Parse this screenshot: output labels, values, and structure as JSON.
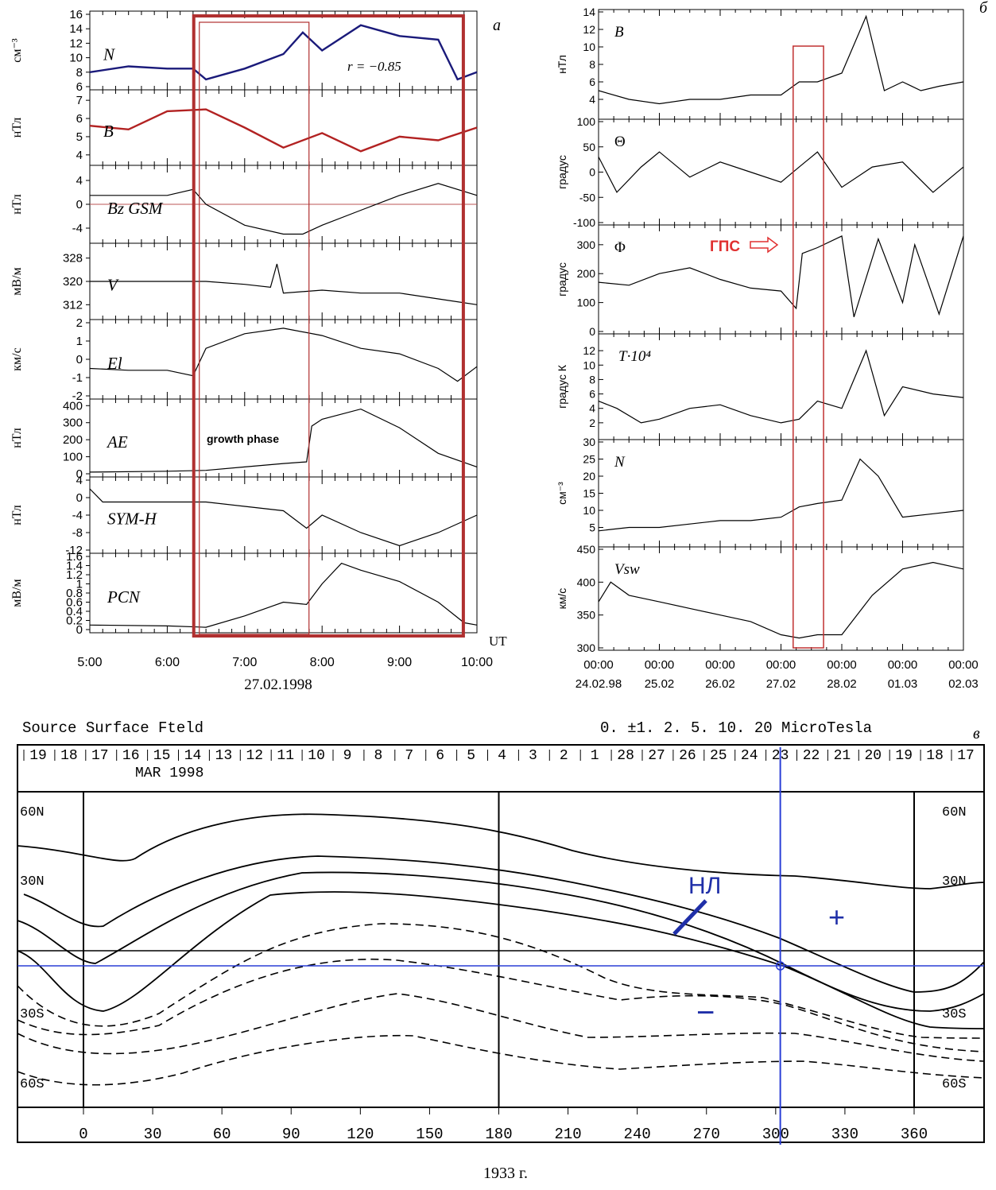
{
  "panels": {
    "a": {
      "letter": "а",
      "annotation_r": "r = −0.85",
      "growth_label": "growth phase",
      "x_unit": "UT",
      "date_label": "27.02.1998",
      "x_ticks": [
        "5:00",
        "6:00",
        "7:00",
        "8:00",
        "9:00",
        "10:00"
      ]
    },
    "b": {
      "letter": "б",
      "gps_label": "ГПС",
      "x_ticks": [
        [
          "00:00",
          "24.02.98"
        ],
        [
          "00:00",
          "25.02"
        ],
        [
          "00:00",
          "26.02"
        ],
        [
          "00:00",
          "27.02"
        ],
        [
          "00:00",
          "28.02"
        ],
        [
          "00:00",
          "01.03"
        ],
        [
          "00:00",
          "02.03"
        ]
      ]
    },
    "c": {
      "letter": "в",
      "title": "Source Surface Fteld",
      "contours": "0. ±1. 2. 5. 10. 20 MicroTesla",
      "month": "MAR 1998",
      "neutral_line": "НЛ",
      "plus": "+",
      "minus": "−",
      "caption": "1933 г.",
      "day_ticks": [
        "19",
        "18",
        "17",
        "16",
        "15",
        "14",
        "13",
        "12",
        "11",
        "10",
        "9",
        "8",
        "7",
        "6",
        "5",
        "4",
        "3",
        "2",
        "1",
        "28",
        "27",
        "26",
        "25",
        "24",
        "23",
        "22",
        "21",
        "20",
        "19",
        "18",
        "17"
      ],
      "lat_labels_left": [
        "60N",
        "30N",
        "30S",
        "60S"
      ],
      "lat_labels_right": [
        "60N",
        "30N",
        "30S",
        "60S"
      ],
      "lon_ticks": [
        "0",
        "30",
        "60",
        "90",
        "120",
        "150",
        "180",
        "210",
        "240",
        "270",
        "300",
        "330",
        "360"
      ]
    }
  },
  "chart_data": [
    {
      "type": "line",
      "title": "",
      "xlabel": "UT",
      "x_range": [
        "5:00",
        "10:00"
      ],
      "x_ticks": [
        "5:00",
        "6:00",
        "7:00",
        "8:00",
        "9:00",
        "10:00"
      ],
      "highlight": {
        "label": "growth phase",
        "start": "6:23",
        "end": "7:48",
        "outer_end": "9:47"
      },
      "panels": [
        {
          "label": "N",
          "unit": "см⁻³",
          "ylim": [
            6,
            16
          ],
          "ticks": [
            6,
            8,
            10,
            12,
            14,
            16
          ],
          "color": "#1a1a7a",
          "x": [
            "5:00",
            "5:30",
            "6:00",
            "6:20",
            "6:30",
            "7:00",
            "7:30",
            "7:45",
            "8:00",
            "8:30",
            "9:00",
            "9:30",
            "9:45",
            "10:00"
          ],
          "y": [
            8,
            8.8,
            8.5,
            8.5,
            7,
            8.5,
            10.5,
            13.5,
            11,
            14.5,
            13,
            12.5,
            7,
            8
          ]
        },
        {
          "label": "B",
          "unit": "нТл",
          "ylim": [
            3.6,
            7.4
          ],
          "ticks": [
            4,
            5,
            6,
            7
          ],
          "color": "#b22222",
          "x": [
            "5:00",
            "5:30",
            "6:00",
            "6:30",
            "7:00",
            "7:30",
            "8:00",
            "8:30",
            "9:00",
            "9:30",
            "10:00"
          ],
          "y": [
            5.6,
            5.4,
            6.4,
            6.5,
            5.5,
            4.4,
            5.2,
            4.2,
            5,
            4.8,
            5.5
          ]
        },
        {
          "label": "Bz GSM",
          "unit": "нТл",
          "ylim": [
            -6,
            6
          ],
          "ticks": [
            -4,
            0,
            4
          ],
          "color": "#000000",
          "x": [
            "5:00",
            "5:30",
            "6:00",
            "6:20",
            "6:30",
            "7:00",
            "7:30",
            "7:45",
            "8:00",
            "8:30",
            "9:00",
            "9:30",
            "10:00"
          ],
          "y": [
            1.5,
            1.5,
            1.5,
            2.5,
            0,
            -3.5,
            -5,
            -5,
            -3.5,
            -1,
            1.5,
            3.5,
            1.5
          ]
        },
        {
          "label": "V",
          "unit": "мВ/м",
          "ylim": [
            308,
            332
          ],
          "ticks": [
            312,
            320,
            328
          ],
          "color": "#000000",
          "x": [
            "5:00",
            "5:30",
            "6:00",
            "6:30",
            "7:00",
            "7:20",
            "7:25",
            "7:30",
            "8:00",
            "8:30",
            "9:00",
            "9:30",
            "10:00"
          ],
          "y": [
            320,
            320,
            320,
            320,
            319,
            318,
            326,
            316,
            317,
            316,
            316,
            314,
            312
          ]
        },
        {
          "label": "El",
          "unit": "км/с",
          "ylim": [
            -2,
            2
          ],
          "ticks": [
            -2,
            -1,
            0,
            1,
            2
          ],
          "color": "#000000",
          "x": [
            "5:00",
            "5:30",
            "6:00",
            "6:20",
            "6:30",
            "7:00",
            "7:30",
            "8:00",
            "8:30",
            "9:00",
            "9:30",
            "9:45",
            "10:00"
          ],
          "y": [
            -0.5,
            -0.6,
            -0.6,
            -0.9,
            0.6,
            1.4,
            1.7,
            1.3,
            0.6,
            0.3,
            -0.5,
            -1.2,
            -0.4
          ]
        },
        {
          "label": "AE",
          "unit": "нТл",
          "ylim": [
            0,
            420
          ],
          "ticks": [
            0,
            100,
            200,
            300,
            400
          ],
          "color": "#000000",
          "x": [
            "5:00",
            "6:00",
            "6:30",
            "7:00",
            "7:30",
            "7:48",
            "7:52",
            "8:00",
            "8:30",
            "9:00",
            "9:30",
            "10:00"
          ],
          "y": [
            10,
            15,
            20,
            40,
            60,
            70,
            280,
            320,
            380,
            270,
            120,
            40
          ]
        },
        {
          "label": "SYM-H",
          "unit": "нТл",
          "ylim": [
            -12,
            4
          ],
          "ticks": [
            -12,
            -8,
            -4,
            0,
            4
          ],
          "color": "#000000",
          "x": [
            "5:00",
            "5:10",
            "5:30",
            "6:00",
            "6:30",
            "7:00",
            "7:30",
            "7:48",
            "8:00",
            "8:30",
            "9:00",
            "9:30",
            "10:00"
          ],
          "y": [
            2,
            -1,
            -1,
            -1,
            -1,
            -2,
            -3,
            -7,
            -4,
            -8,
            -11,
            -8,
            -4
          ]
        },
        {
          "label": "PCN",
          "unit": "мВ/м",
          "ylim": [
            0,
            1.6
          ],
          "ticks": [
            0,
            0.2,
            0.4,
            0.6,
            0.8,
            1.0,
            1.2,
            1.4,
            1.6
          ],
          "color": "#000000",
          "x": [
            "5:00",
            "6:00",
            "6:30",
            "7:00",
            "7:30",
            "7:48",
            "8:00",
            "8:15",
            "8:30",
            "9:00",
            "9:30",
            "9:50",
            "10:00"
          ],
          "y": [
            0.1,
            0.08,
            0.05,
            0.3,
            0.6,
            0.55,
            1.0,
            1.45,
            1.3,
            1.05,
            0.6,
            0.15,
            0.1
          ]
        }
      ]
    },
    {
      "type": "line",
      "title": "",
      "x_ticks": [
        "24.02.98",
        "25.02",
        "26.02",
        "27.02",
        "28.02",
        "01.03",
        "02.03"
      ],
      "highlight": {
        "start": "27.02 06:00",
        "end": "27.02 18:00",
        "label": "ГПС"
      },
      "panels": [
        {
          "label": "B",
          "unit": "нТл",
          "ylim": [
            2,
            14
          ],
          "ticks": [
            4,
            6,
            8,
            10,
            12,
            14
          ],
          "x_days": [
            0,
            0.5,
            1,
            1.5,
            2,
            2.5,
            3,
            3.3,
            3.6,
            4,
            4.4,
            4.7,
            5,
            5.3,
            5.6,
            6
          ],
          "y": [
            5,
            4,
            3.5,
            4,
            4,
            4.5,
            4.5,
            6,
            6,
            7,
            13.5,
            5,
            6,
            5,
            5.5,
            6
          ]
        },
        {
          "label": "Θ",
          "unit": "градус",
          "ylim": [
            -100,
            100
          ],
          "ticks": [
            -100,
            -50,
            0,
            50,
            100
          ],
          "x_days": [
            0,
            0.3,
            0.7,
            1,
            1.5,
            2,
            2.5,
            3,
            3.3,
            3.6,
            4,
            4.5,
            5,
            5.5,
            6
          ],
          "y": [
            30,
            -40,
            10,
            40,
            -10,
            20,
            0,
            -20,
            10,
            40,
            -30,
            10,
            20,
            -40,
            10
          ]
        },
        {
          "label": "Φ",
          "unit": "градус",
          "ylim": [
            0,
            360
          ],
          "ticks": [
            0,
            100,
            200,
            300
          ],
          "x_days": [
            0,
            0.5,
            1,
            1.5,
            2,
            2.5,
            3,
            3.25,
            3.35,
            3.6,
            4,
            4.2,
            4.6,
            5,
            5.2,
            5.6,
            6
          ],
          "y": [
            170,
            160,
            200,
            220,
            180,
            150,
            140,
            80,
            270,
            290,
            330,
            50,
            320,
            100,
            300,
            60,
            330
          ]
        },
        {
          "label": "T·10⁴",
          "unit": "градус К",
          "ylim": [
            0,
            14
          ],
          "ticks": [
            2.0,
            4.0,
            6.0,
            8.0,
            10.0,
            12
          ],
          "x_days": [
            0,
            0.3,
            0.7,
            1,
            1.5,
            2,
            2.5,
            3,
            3.3,
            3.6,
            4,
            4.4,
            4.7,
            5,
            5.5,
            6
          ],
          "y": [
            5,
            4,
            2,
            2.5,
            4,
            4.5,
            3,
            2,
            2.5,
            5,
            4,
            12,
            3,
            7,
            6,
            5.5
          ]
        },
        {
          "label": "N",
          "unit": "см⁻³",
          "ylim": [
            0,
            30
          ],
          "ticks": [
            5,
            10,
            15,
            20,
            25,
            30
          ],
          "x_days": [
            0,
            0.5,
            1,
            1.5,
            2,
            2.5,
            3,
            3.3,
            3.6,
            4,
            4.3,
            4.6,
            5,
            5.5,
            6
          ],
          "y": [
            4,
            5,
            5,
            6,
            7,
            7,
            8,
            11,
            12,
            13,
            25,
            20,
            8,
            9,
            10
          ]
        },
        {
          "label": "Vsw",
          "unit": "км/с",
          "ylim": [
            300,
            450
          ],
          "ticks": [
            300,
            350,
            400,
            450
          ],
          "x_days": [
            0,
            0.2,
            0.5,
            1,
            1.5,
            2,
            2.5,
            3,
            3.3,
            3.6,
            4,
            4.5,
            5,
            5.5,
            6
          ],
          "y": [
            370,
            400,
            380,
            370,
            360,
            350,
            340,
            320,
            315,
            320,
            320,
            380,
            420,
            430,
            420
          ]
        }
      ]
    },
    {
      "type": "contour",
      "title": "Source Surface Fteld",
      "xlabel": "",
      "x_range": [
        0,
        360
      ],
      "x_ticks": [
        0,
        30,
        60,
        90,
        120,
        150,
        180,
        210,
        240,
        270,
        300,
        330,
        360
      ],
      "ylim": [
        -90,
        90
      ],
      "y_ticks": [
        "60N",
        "30N",
        "30S",
        "60S"
      ],
      "contour_levels": [
        "0",
        "±1",
        "2",
        "5",
        "10",
        "20"
      ],
      "marker_longitude": 302
    }
  ]
}
